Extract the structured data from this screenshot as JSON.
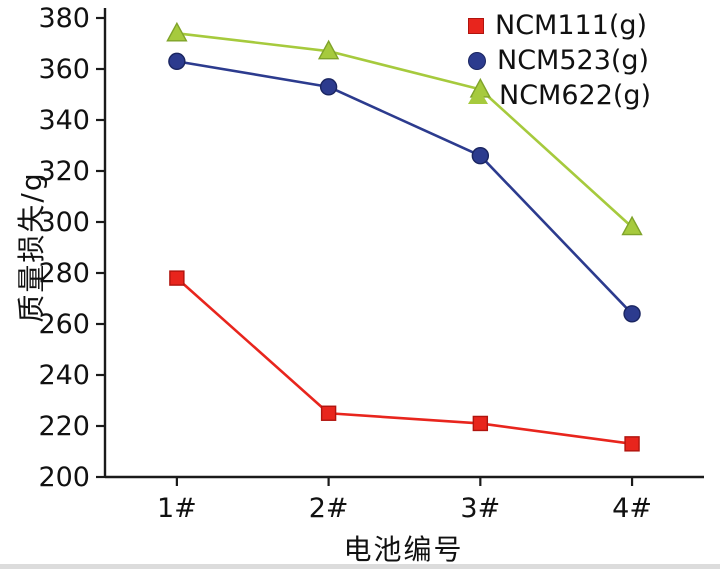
{
  "chart_data": {
    "type": "line",
    "title": "",
    "xlabel": "电池编号",
    "ylabel": "质量损失/g",
    "categories": [
      "1#",
      "2#",
      "3#",
      "4#"
    ],
    "ylim": [
      200,
      380
    ],
    "ytick_step": 20,
    "grid": false,
    "legend_position": "top-right",
    "axis_color": "#1a1a1a",
    "series": [
      {
        "name": "NCM111(g)",
        "marker": "square",
        "color": "#e8251d",
        "edge": "#b0140e",
        "values": [
          278,
          225,
          221,
          213
        ]
      },
      {
        "name": "NCM523(g)",
        "marker": "circle",
        "color": "#2c3b8e",
        "edge": "#1a2560",
        "values": [
          363,
          353,
          326,
          264
        ]
      },
      {
        "name": "NCM622(g)",
        "marker": "triangle",
        "color": "#a6ca3d",
        "edge": "#7fa32a",
        "values": [
          374,
          367,
          352,
          298
        ]
      }
    ]
  }
}
